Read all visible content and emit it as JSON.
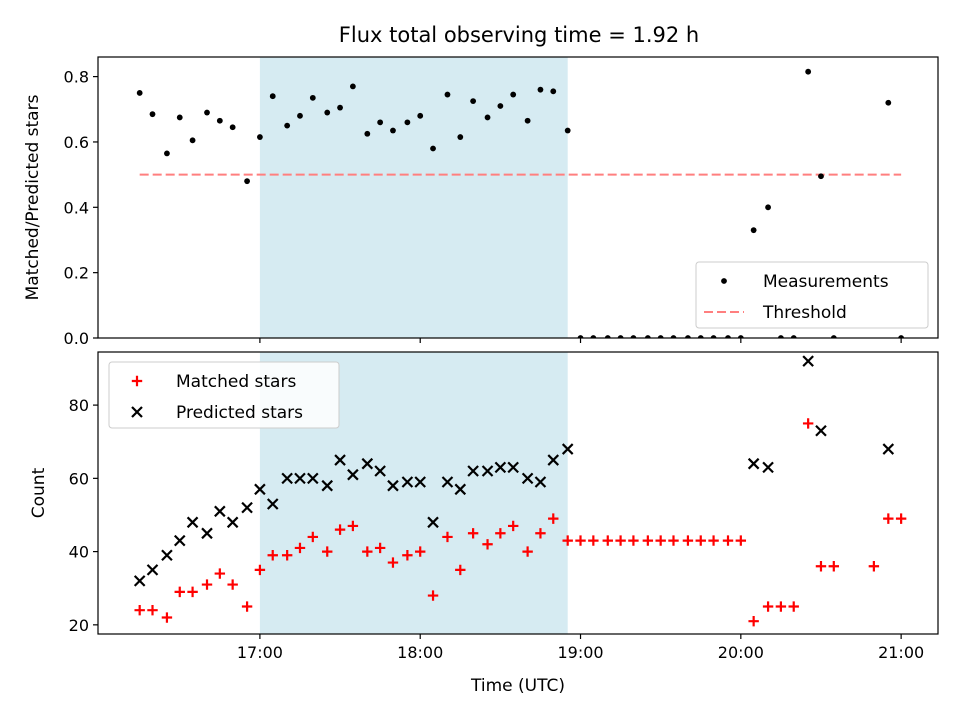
{
  "title": "Flux total observing time = 1.92 h",
  "colors": {
    "shade": "#add8e6",
    "matched": "#ff0000",
    "predicted": "#000000",
    "threshold": "#ff7f7f",
    "measurement": "#000000"
  },
  "x_axis": {
    "label": "Time (UTC)",
    "ticks": [
      {
        "v": 17,
        "label": "17:00"
      },
      {
        "v": 18,
        "label": "18:00"
      },
      {
        "v": 19,
        "label": "19:00"
      },
      {
        "v": 20,
        "label": "20:00"
      },
      {
        "v": 21,
        "label": "21:00"
      }
    ],
    "range": [
      15.99,
      21.23
    ]
  },
  "chart_data": [
    {
      "type": "scatter",
      "ylabel": "Matched/Predicted stars",
      "ylim": [
        0,
        0.86
      ],
      "yticks": [
        {
          "v": 0,
          "label": "0.0"
        },
        {
          "v": 0.2,
          "label": "0.2"
        },
        {
          "v": 0.4,
          "label": "0.4"
        },
        {
          "v": 0.6,
          "label": "0.6"
        },
        {
          "v": 0.8,
          "label": "0.8"
        }
      ],
      "shaded_span": [
        17.0,
        18.92
      ],
      "legend": {
        "placement": "lower right",
        "entries": [
          {
            "key": "measurements",
            "label": "Measurements"
          },
          {
            "key": "threshold",
            "label": "Threshold"
          }
        ]
      },
      "threshold": {
        "name": "Threshold",
        "y": 0.5,
        "x": [
          16.25,
          21.0
        ],
        "style": "dashed"
      },
      "series": [
        {
          "name": "Measurements",
          "marker": "dot",
          "x": [
            16.25,
            16.33,
            16.42,
            16.5,
            16.58,
            16.67,
            16.75,
            16.83,
            16.92,
            17.0,
            17.08,
            17.17,
            17.25,
            17.33,
            17.42,
            17.5,
            17.58,
            17.67,
            17.75,
            17.83,
            17.92,
            18.0,
            18.08,
            18.17,
            18.25,
            18.33,
            18.42,
            18.5,
            18.58,
            18.67,
            18.75,
            18.83,
            18.92,
            19.0,
            19.08,
            19.17,
            19.25,
            19.33,
            19.42,
            19.5,
            19.58,
            19.67,
            19.75,
            19.83,
            19.92,
            20.0,
            20.08,
            20.17,
            20.25,
            20.33,
            20.42,
            20.5,
            20.58,
            20.67,
            20.75,
            20.83,
            20.92,
            21.0
          ],
          "y": [
            0.75,
            0.685,
            0.565,
            0.675,
            0.605,
            0.69,
            0.665,
            0.645,
            0.48,
            0.615,
            0.74,
            0.65,
            0.68,
            0.735,
            0.69,
            0.705,
            0.77,
            0.625,
            0.66,
            0.635,
            0.66,
            0.68,
            0.58,
            0.745,
            0.615,
            0.725,
            0.675,
            0.71,
            0.745,
            0.665,
            0.76,
            0.755,
            0.635,
            0.0,
            0.0,
            0.0,
            0.0,
            0.0,
            0.0,
            0.0,
            0.0,
            0.0,
            0.0,
            0.0,
            0.0,
            0.0,
            0.33,
            0.4,
            0.0,
            0.0,
            0.815,
            0.495,
            0.0,
            null,
            null,
            null,
            0.72,
            0.0
          ]
        }
      ]
    },
    {
      "type": "scatter",
      "ylabel": "Count",
      "ylim": [
        17.5,
        94.5
      ],
      "yticks": [
        {
          "v": 20,
          "label": "20"
        },
        {
          "v": 40,
          "label": "40"
        },
        {
          "v": 60,
          "label": "60"
        },
        {
          "v": 80,
          "label": "80"
        }
      ],
      "shaded_span": [
        17.0,
        18.92
      ],
      "legend": {
        "placement": "upper left",
        "entries": [
          {
            "key": "matched",
            "label": "Matched stars"
          },
          {
            "key": "predicted",
            "label": "Predicted stars"
          }
        ]
      },
      "series": [
        {
          "name": "Matched stars",
          "marker": "plus",
          "x": [
            16.25,
            16.33,
            16.42,
            16.5,
            16.58,
            16.67,
            16.75,
            16.83,
            16.92,
            17.0,
            17.08,
            17.17,
            17.25,
            17.33,
            17.42,
            17.5,
            17.58,
            17.67,
            17.75,
            17.83,
            17.92,
            18.0,
            18.08,
            18.17,
            18.25,
            18.33,
            18.42,
            18.5,
            18.58,
            18.67,
            18.75,
            18.83,
            18.92,
            19.0,
            19.08,
            19.17,
            19.25,
            19.33,
            19.42,
            19.5,
            19.58,
            19.67,
            19.75,
            19.83,
            19.92,
            20.0,
            20.08,
            20.17,
            20.25,
            20.33,
            20.42,
            20.5,
            20.58,
            20.67,
            20.75,
            20.83,
            20.92,
            21.0
          ],
          "y": [
            24,
            24,
            22,
            29,
            29,
            31,
            34,
            31,
            25,
            35,
            39,
            39,
            41,
            44,
            40,
            46,
            47,
            40,
            41,
            37,
            39,
            40,
            28,
            44,
            35,
            45,
            42,
            45,
            47,
            40,
            45,
            49,
            43,
            43,
            43,
            43,
            43,
            43,
            43,
            43,
            43,
            43,
            43,
            43,
            43,
            43,
            21,
            25,
            25,
            25,
            75,
            36,
            36,
            null,
            null,
            36,
            49,
            49
          ]
        },
        {
          "name": "Predicted stars",
          "marker": "x",
          "x": [
            16.25,
            16.33,
            16.42,
            16.5,
            16.58,
            16.67,
            16.75,
            16.83,
            16.92,
            17.0,
            17.08,
            17.17,
            17.25,
            17.33,
            17.42,
            17.5,
            17.58,
            17.67,
            17.75,
            17.83,
            17.92,
            18.0,
            18.08,
            18.17,
            18.25,
            18.33,
            18.42,
            18.5,
            18.58,
            18.67,
            18.75,
            18.83,
            18.92,
            20.08,
            20.17,
            20.42,
            20.5,
            20.92
          ],
          "y": [
            32,
            35,
            39,
            43,
            48,
            45,
            51,
            48,
            52,
            57,
            53,
            60,
            60,
            60,
            58,
            65,
            61,
            64,
            62,
            58,
            59,
            59,
            48,
            59,
            57,
            62,
            62,
            63,
            63,
            60,
            59,
            65,
            68,
            64,
            63,
            92,
            73,
            68
          ]
        }
      ]
    }
  ]
}
